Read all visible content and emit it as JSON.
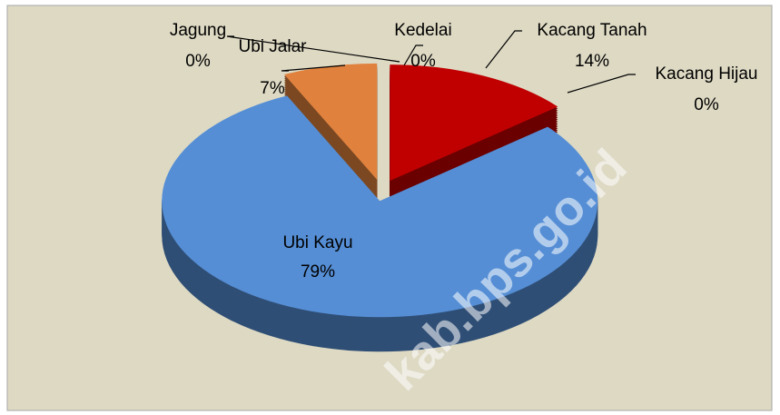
{
  "chart_data": {
    "type": "pie",
    "categories": [
      "Kacang Tanah",
      "Kacang Hijau",
      "Ubi Kayu",
      "Jagung",
      "Ubi Jalar",
      "Kedelai"
    ],
    "values": [
      14,
      0,
      79,
      0,
      7,
      0
    ],
    "value_labels": [
      "14%",
      "0%",
      "79%",
      "0%",
      "7%",
      "0%"
    ],
    "colors": [
      "#c00000",
      "#4b3a66",
      "#558ed5",
      "#9bbb59",
      "#e0823e",
      "#8064a2"
    ],
    "watermark": "kab.bps.go.id"
  }
}
